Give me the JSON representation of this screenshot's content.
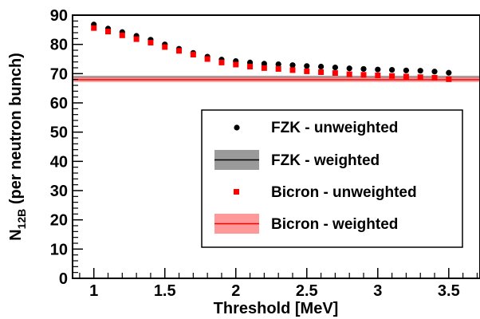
{
  "chart_data": {
    "type": "scatter",
    "xlabel": "Threshold  [MeV]",
    "ylabel": {
      "main": "N",
      "sub": "12B",
      "rest": " (per neutron bunch)"
    },
    "xlim": [
      0.85,
      3.72
    ],
    "ylim": [
      0,
      90
    ],
    "xticks": [
      1,
      1.5,
      2,
      2.5,
      3,
      3.5
    ],
    "xtick_labels": [
      "1",
      "1.5",
      "2",
      "2.5",
      "3",
      "3.5"
    ],
    "yticks": [
      0,
      10,
      20,
      30,
      40,
      50,
      60,
      70,
      80,
      90
    ],
    "ytick_labels": [
      "0",
      "10",
      "20",
      "30",
      "40",
      "50",
      "60",
      "70",
      "80",
      "90"
    ],
    "grid": false,
    "legend_position": "right",
    "series": [
      {
        "name": "FZK - unweighted",
        "kind": "points",
        "marker": "circle",
        "color": "#000000",
        "x": [
          1.0,
          1.1,
          1.2,
          1.3,
          1.4,
          1.5,
          1.6,
          1.7,
          1.8,
          1.9,
          2.0,
          2.1,
          2.2,
          2.3,
          2.4,
          2.5,
          2.6,
          2.7,
          2.8,
          2.9,
          3.0,
          3.1,
          3.2,
          3.3,
          3.4,
          3.5
        ],
        "y": [
          86.8,
          85.4,
          84.2,
          82.9,
          81.6,
          80.0,
          78.5,
          77.1,
          75.8,
          74.8,
          74.3,
          73.8,
          73.4,
          73.2,
          72.9,
          72.6,
          72.4,
          72.1,
          71.8,
          71.6,
          71.4,
          71.3,
          71.1,
          71.0,
          70.7,
          70.3
        ]
      },
      {
        "name": "FZK - weighted",
        "kind": "band",
        "line_color": "#000000",
        "band_color": "#9a9a9a",
        "value": 68.6,
        "band": [
          67.9,
          69.3
        ]
      },
      {
        "name": "Bicron - unweighted",
        "kind": "points",
        "marker": "square",
        "color": "#ff0000",
        "x": [
          1.0,
          1.1,
          1.2,
          1.3,
          1.4,
          1.5,
          1.6,
          1.7,
          1.8,
          1.9,
          2.0,
          2.1,
          2.2,
          2.3,
          2.4,
          2.5,
          2.6,
          2.7,
          2.8,
          2.9,
          3.0,
          3.1,
          3.2,
          3.3,
          3.4,
          3.5
        ],
        "y": [
          85.6,
          84.4,
          83.1,
          81.8,
          80.6,
          79.1,
          77.8,
          76.5,
          75.0,
          73.8,
          73.1,
          72.4,
          71.9,
          71.6,
          71.2,
          70.8,
          70.5,
          70.2,
          69.8,
          69.6,
          69.4,
          69.2,
          69.0,
          68.8,
          68.6,
          68.1
        ]
      },
      {
        "name": "Bicron - weighted",
        "kind": "band",
        "line_color": "#ff0000",
        "band_color": "#ff9999",
        "value": 67.9,
        "band": [
          67.1,
          68.8
        ]
      }
    ]
  }
}
